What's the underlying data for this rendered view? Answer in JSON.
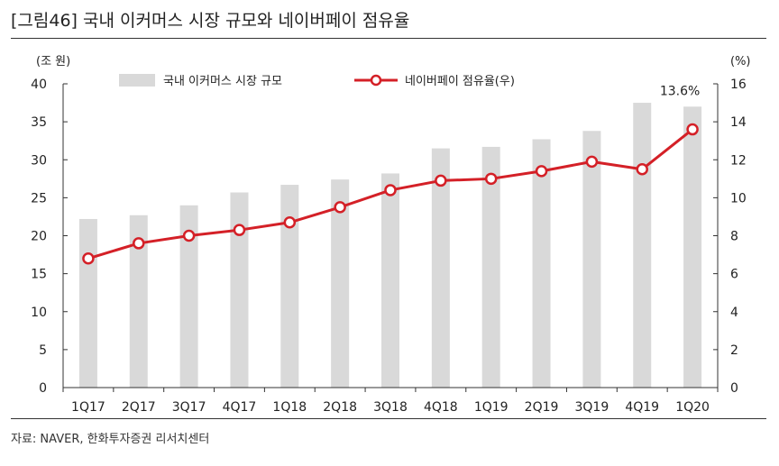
{
  "figure": {
    "title": "[그림46]  국내 이커머스 시장 규모와 네이버페이 점유율",
    "source": "자료: NAVER, 한화투자증권 리서치센터"
  },
  "chart_data": {
    "type": "bar+line",
    "categories": [
      "1Q17",
      "2Q17",
      "3Q17",
      "4Q17",
      "1Q18",
      "2Q18",
      "3Q18",
      "4Q18",
      "1Q19",
      "2Q19",
      "3Q19",
      "4Q19",
      "1Q20"
    ],
    "series": [
      {
        "name": "국내 이커머스 시장 규모",
        "type": "bar",
        "axis": "left",
        "color": "#d9d9d9",
        "values": [
          22.2,
          22.7,
          24.0,
          25.7,
          26.7,
          27.4,
          28.2,
          31.5,
          31.7,
          32.7,
          33.8,
          37.5,
          37.0
        ]
      },
      {
        "name": "네이버페이 점유율(우)",
        "type": "line",
        "axis": "right",
        "color": "#d42027",
        "values": [
          6.8,
          7.6,
          8.0,
          8.3,
          8.7,
          9.5,
          10.4,
          10.9,
          11.0,
          11.4,
          11.9,
          11.5,
          13.6
        ]
      }
    ],
    "y_left": {
      "unit_label": "(조 원)",
      "min": 0,
      "max": 40,
      "ticks": [
        0,
        5,
        10,
        15,
        20,
        25,
        30,
        35,
        40
      ]
    },
    "y_right": {
      "unit_label": "(%)",
      "min": 0,
      "max": 16,
      "ticks": [
        0,
        2,
        4,
        6,
        8,
        10,
        12,
        14,
        16
      ]
    },
    "annotation": {
      "text": "13.6%",
      "category": "1Q20"
    },
    "legend": {
      "placement": "top-center"
    },
    "grid": false
  }
}
